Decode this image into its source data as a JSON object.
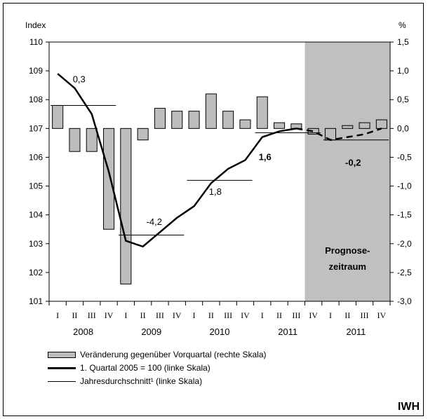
{
  "chart_data": {
    "type": "bar-line-combo",
    "left_axis": {
      "label": "Index",
      "ticks": [
        "110",
        "109",
        "108",
        "107",
        "106",
        "105",
        "104",
        "103",
        "102",
        "101"
      ],
      "ylim": [
        101,
        110
      ]
    },
    "right_axis": {
      "label": "%",
      "ticks": [
        "1,5",
        "1,0",
        "0,5",
        "0,0",
        "-0,5",
        "-1,0",
        "-1,5",
        "-2,0",
        "-2,5",
        "-3,0"
      ],
      "ylim": [
        -3.0,
        1.5
      ]
    },
    "quarter_labels": [
      "I",
      "II",
      "III",
      "IV",
      "I",
      "II",
      "III",
      "IV",
      "I",
      "II",
      "III",
      "IV",
      "I",
      "II",
      "III",
      "IV",
      "I",
      "II",
      "III",
      "IV"
    ],
    "year_labels": [
      "2008",
      "2009",
      "2010",
      "2011",
      "2011"
    ],
    "forecast_area_label_line1": "Prognose-",
    "forecast_area_label_line2": "zeitraum",
    "forecast_start_index": 15,
    "bars_pct": [
      0.4,
      -0.4,
      -0.4,
      -1.75,
      -2.7,
      -0.2,
      0.35,
      0.3,
      0.3,
      0.6,
      0.3,
      0.15,
      0.55,
      0.1,
      0.08,
      -0.1,
      -0.2,
      0.05,
      0.1,
      0.15
    ],
    "index_line": [
      108.9,
      108.4,
      107.5,
      105.5,
      103.1,
      102.9,
      103.4,
      103.9,
      104.3,
      105.1,
      105.6,
      105.9,
      106.7,
      106.9,
      107.0,
      106.9,
      106.6,
      106.7,
      106.8,
      107.0
    ],
    "annual_average": [
      {
        "from_quarter": 0,
        "to_quarter": 3,
        "value": 107.8
      },
      {
        "from_quarter": 4,
        "to_quarter": 7,
        "value": 103.3
      },
      {
        "from_quarter": 8,
        "to_quarter": 11,
        "value": 105.2
      },
      {
        "from_quarter": 12,
        "to_quarter": 15,
        "value": 106.85
      },
      {
        "from_quarter": 16,
        "to_quarter": 19,
        "value": 106.6
      }
    ],
    "annotations": [
      {
        "text": "0,3",
        "bold": false
      },
      {
        "text": "-4,2",
        "bold": false
      },
      {
        "text": "1,8",
        "bold": false
      },
      {
        "text": "1,6",
        "bold": true
      },
      {
        "text": "-0,2",
        "bold": true
      }
    ],
    "colors": {
      "bar": "#bdbdbd",
      "forecast_bg": "#c0c0c0",
      "line": "#000000"
    }
  },
  "legend": [
    {
      "label": "Veränderung gegenüber Vorquartal (rechte Skala)"
    },
    {
      "label": "1. Quartal 2005 = 100 (linke Skala)"
    },
    {
      "label": "Jahresdurchschnitt¹ (linke Skala)"
    }
  ],
  "brand": "IWH"
}
